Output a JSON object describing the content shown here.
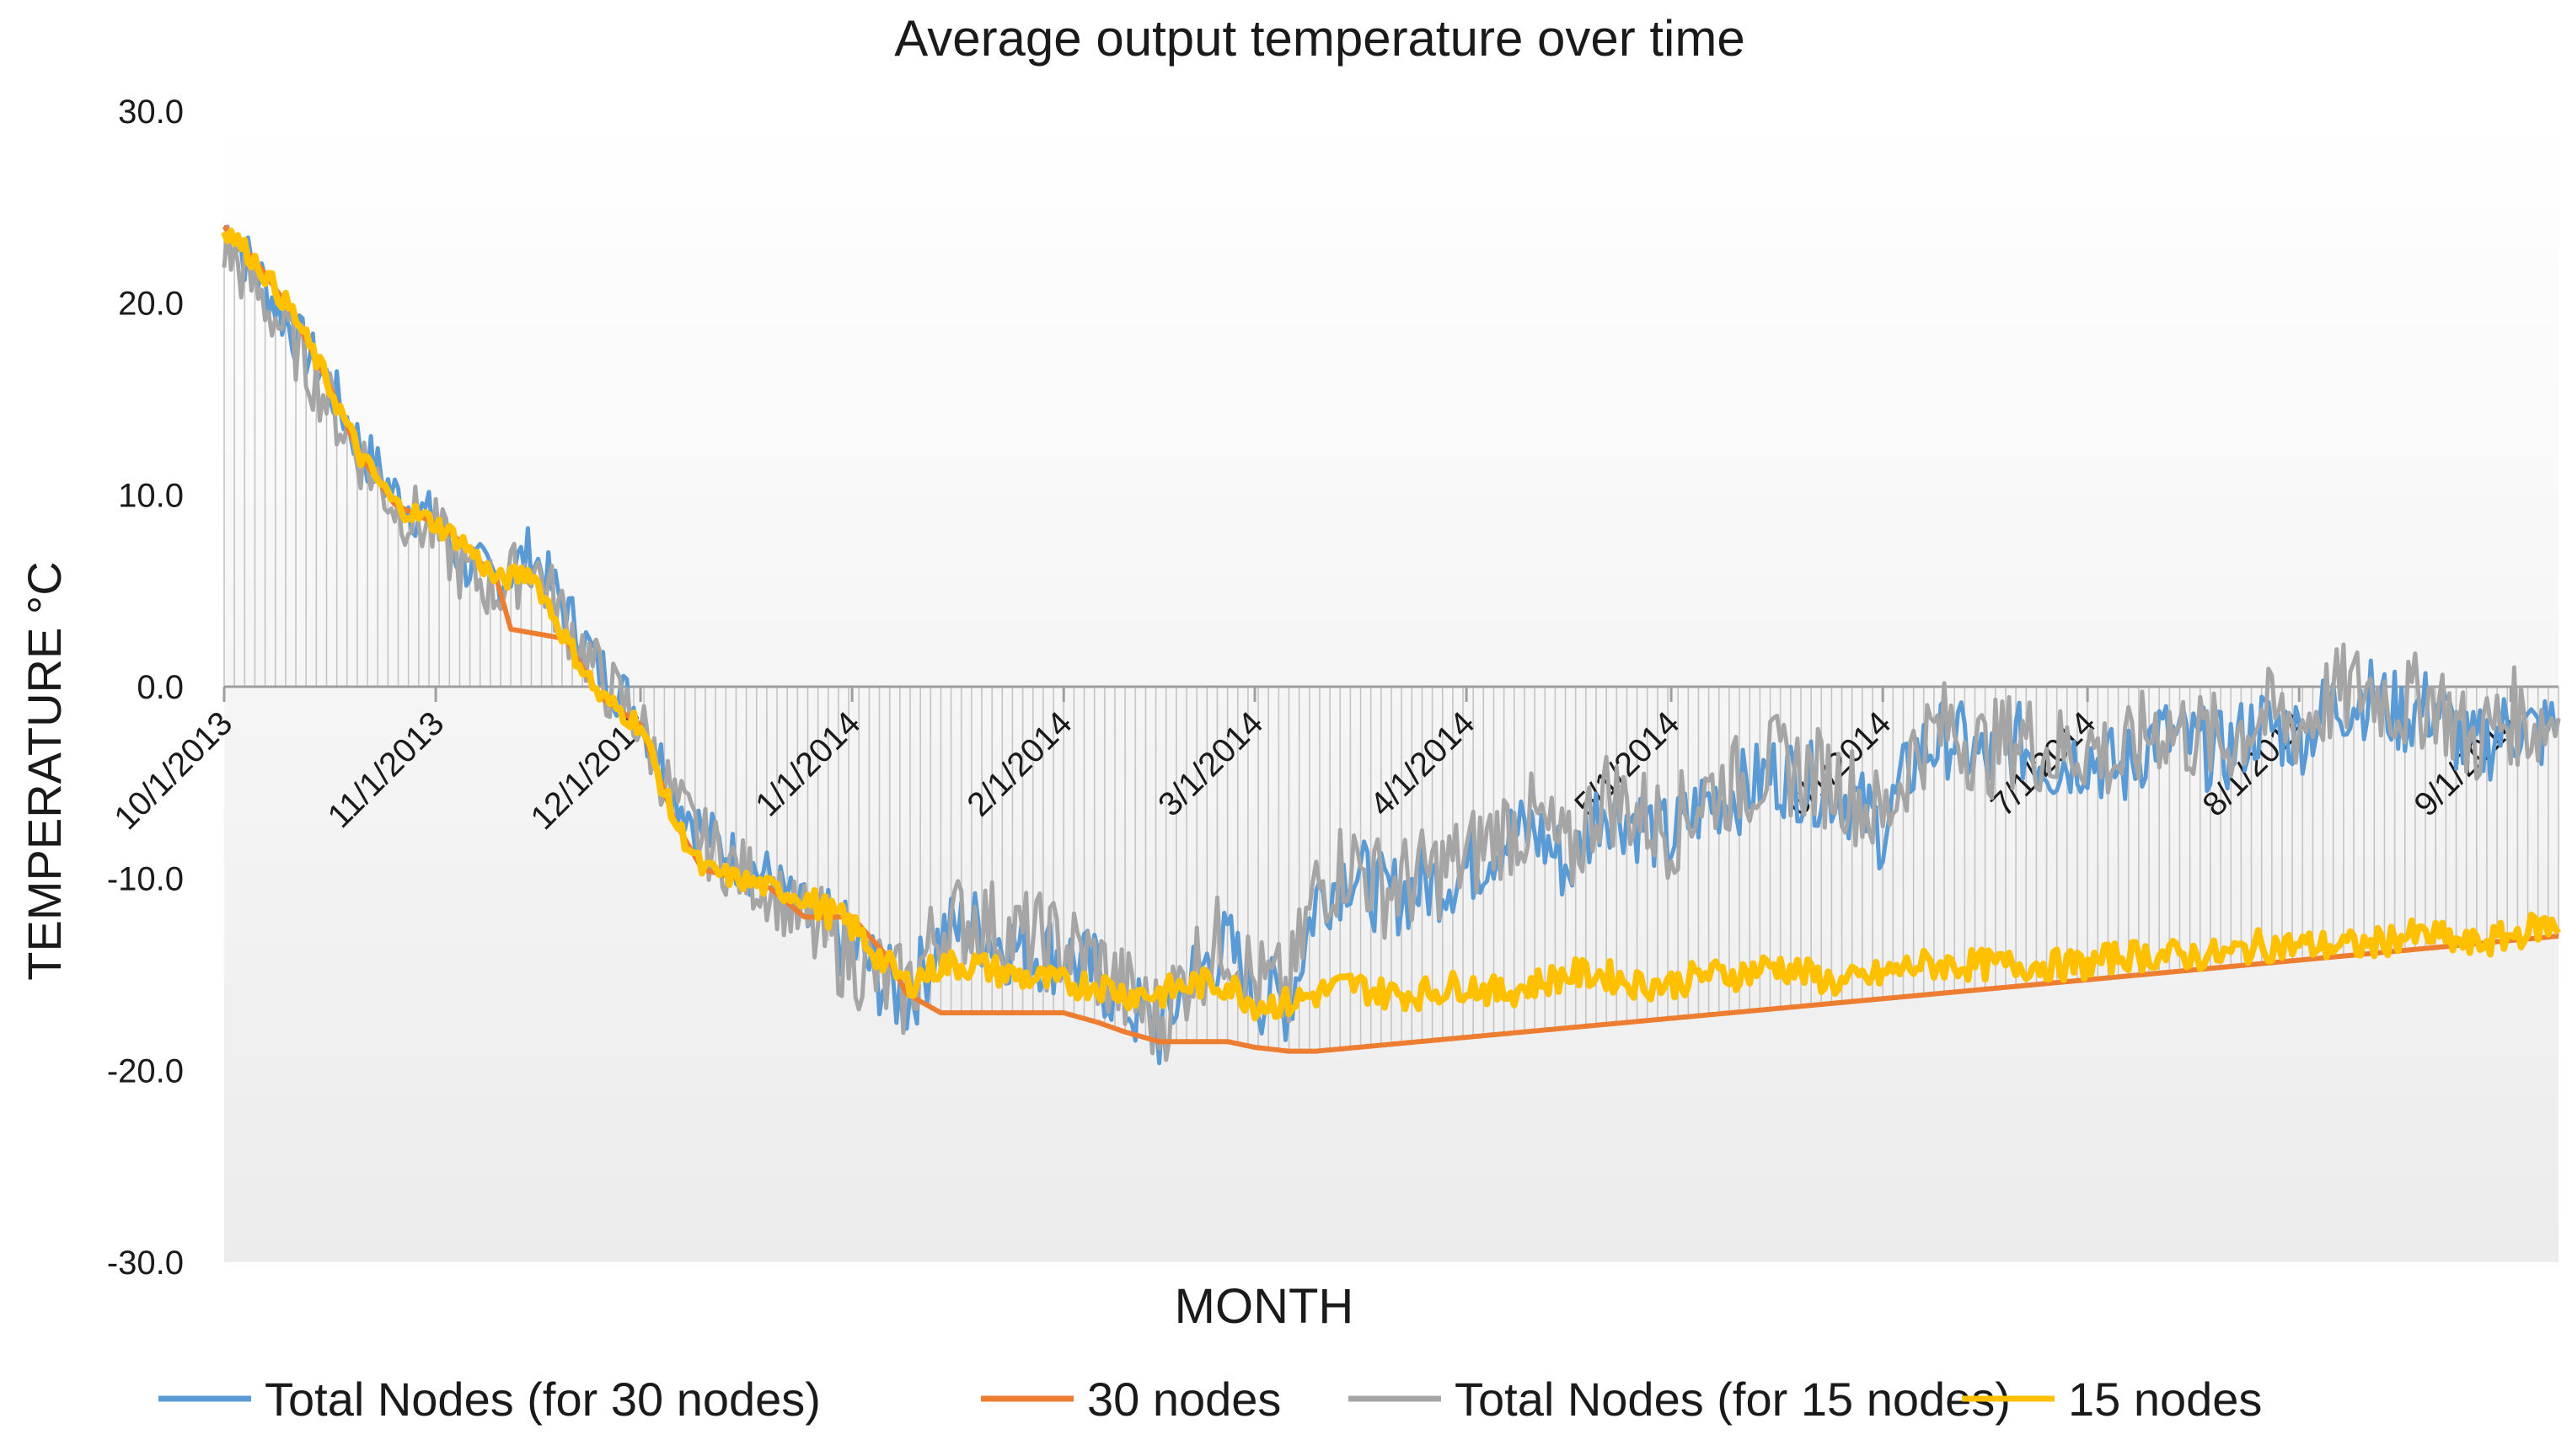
{
  "chart_data": {
    "type": "line",
    "title": "Average output temperature over time",
    "xlabel": "MONTH",
    "ylabel": "TEMPERATURE °C",
    "ylim": [
      -30,
      30
    ],
    "y_ticks": [
      "30.0",
      "20.0",
      "10.0",
      "0.0",
      "-10.0",
      "-20.0",
      "-30.0"
    ],
    "y_tick_values": [
      30,
      20,
      10,
      0,
      -10,
      -20,
      -30
    ],
    "x_range_days": [
      0,
      342
    ],
    "x_ticks": [
      {
        "label": "10/1/2013",
        "day": 0
      },
      {
        "label": "11/1/2013",
        "day": 31
      },
      {
        "label": "12/1/2013",
        "day": 61
      },
      {
        "label": "1/1/2014",
        "day": 92
      },
      {
        "label": "2/1/2014",
        "day": 123
      },
      {
        "label": "3/1/2014",
        "day": 151
      },
      {
        "label": "4/1/2014",
        "day": 182
      },
      {
        "label": "5/1/2014",
        "day": 212
      },
      {
        "label": "6/1/2014",
        "day": 243
      },
      {
        "label": "7/1/2014",
        "day": 273
      },
      {
        "label": "8/1/2014",
        "day": 304
      },
      {
        "label": "9/1/2014",
        "day": 335
      }
    ],
    "legend_position": "bottom",
    "series": [
      {
        "name": "Total Nodes (for 30 nodes)",
        "color": "#5b9bd5",
        "x": [
          0,
          5,
          10,
          15,
          20,
          25,
          31,
          35,
          40,
          45,
          50,
          55,
          61,
          66,
          70,
          75,
          80,
          85,
          92,
          97,
          100,
          105,
          110,
          115,
          123,
          128,
          132,
          137,
          142,
          147,
          151,
          156,
          160,
          165,
          170,
          175,
          182,
          187,
          192,
          197,
          202,
          207,
          212,
          217,
          222,
          227,
          232,
          237,
          243,
          248,
          253,
          258,
          263,
          268,
          273,
          278,
          283,
          288,
          293,
          298,
          304,
          309,
          314,
          319,
          324,
          329,
          335,
          339,
          342
        ],
        "values": [
          24.0,
          21.5,
          18.5,
          16.0,
          12.5,
          10.0,
          8.5,
          6.5,
          5.5,
          7.0,
          4.0,
          1.0,
          -1.5,
          -5.5,
          -7.5,
          -9.0,
          -10.0,
          -12.0,
          -13.5,
          -15.5,
          -16.5,
          -13.0,
          -12.5,
          -13.5,
          -14.0,
          -15.0,
          -16.5,
          -18.0,
          -15.0,
          -13.5,
          -16.0,
          -16.5,
          -11.0,
          -9.5,
          -11.0,
          -10.5,
          -9.5,
          -8.0,
          -7.5,
          -9.5,
          -6.0,
          -7.0,
          -8.0,
          -6.0,
          -5.5,
          -4.5,
          -5.0,
          -5.5,
          -7.5,
          -3.5,
          -2.5,
          -4.0,
          -3.0,
          -4.0,
          -3.5,
          -4.5,
          -2.5,
          -3.0,
          -3.5,
          -2.0,
          -2.5,
          -1.0,
          -0.5,
          -1.5,
          -1.0,
          -3.5,
          -2.0,
          -2.5,
          -2.0
        ]
      },
      {
        "name": "30 nodes",
        "color": "#ed7d31",
        "x": [
          0,
          5,
          10,
          15,
          20,
          25,
          31,
          35,
          40,
          42,
          50,
          55,
          61,
          66,
          70,
          75,
          80,
          85,
          92,
          97,
          100,
          105,
          110,
          115,
          123,
          128,
          132,
          137,
          142,
          147,
          151,
          156,
          160,
          342
        ],
        "values": [
          24.0,
          22.0,
          19.5,
          16.0,
          12.0,
          9.5,
          8.5,
          7.5,
          5.5,
          3.0,
          2.5,
          -0.5,
          -2.0,
          -7.0,
          -9.5,
          -10.0,
          -10.5,
          -12.0,
          -12.0,
          -14.0,
          -16.0,
          -17.0,
          -17.0,
          -17.0,
          -17.0,
          -17.5,
          -18.0,
          -18.5,
          -18.5,
          -18.5,
          -18.8,
          -19.0,
          -19.0,
          -13.0
        ]
      },
      {
        "name": "Total Nodes (for 15 nodes)",
        "color": "#a5a5a5",
        "x": [
          0,
          5,
          10,
          15,
          20,
          25,
          31,
          35,
          40,
          45,
          50,
          55,
          61,
          66,
          70,
          75,
          80,
          85,
          92,
          97,
          100,
          105,
          110,
          115,
          123,
          128,
          132,
          137,
          142,
          147,
          151,
          156,
          160,
          165,
          170,
          175,
          182,
          187,
          192,
          197,
          202,
          207,
          212,
          217,
          222,
          227,
          232,
          237,
          243,
          248,
          253,
          258,
          263,
          268,
          273,
          278,
          283,
          288,
          293,
          298,
          304,
          309,
          314,
          319,
          324,
          329,
          335,
          339,
          342
        ],
        "values": [
          23.0,
          20.5,
          18.0,
          15.0,
          12.0,
          9.5,
          8.0,
          6.0,
          5.0,
          6.5,
          3.5,
          0.5,
          -2.0,
          -6.0,
          -8.0,
          -9.5,
          -10.5,
          -12.5,
          -14.0,
          -15.5,
          -16.0,
          -12.5,
          -12.0,
          -13.0,
          -13.5,
          -14.5,
          -16.0,
          -17.5,
          -14.5,
          -13.0,
          -15.5,
          -16.0,
          -10.5,
          -9.0,
          -10.5,
          -10.0,
          -9.0,
          -7.5,
          -7.0,
          -9.0,
          -5.5,
          -6.5,
          -7.5,
          -5.5,
          -5.0,
          -4.0,
          -4.5,
          -5.0,
          -7.0,
          -3.0,
          -2.0,
          -3.5,
          -2.5,
          -3.5,
          -3.0,
          -4.0,
          -2.0,
          -2.5,
          -3.0,
          -1.5,
          -2.0,
          -0.5,
          0.0,
          -1.0,
          -0.5,
          -3.0,
          -1.5,
          -2.0,
          -1.5
        ]
      },
      {
        "name": "15 nodes",
        "color": "#ffc000",
        "x": [
          0,
          5,
          10,
          15,
          20,
          25,
          31,
          35,
          40,
          45,
          50,
          55,
          61,
          66,
          70,
          75,
          80,
          85,
          92,
          97,
          100,
          105,
          110,
          115,
          123,
          128,
          132,
          137,
          142,
          147,
          151,
          156,
          160,
          165,
          170,
          175,
          182,
          187,
          192,
          197,
          202,
          207,
          212,
          217,
          222,
          227,
          232,
          237,
          243,
          248,
          253,
          258,
          263,
          268,
          273,
          278,
          283,
          288,
          293,
          298,
          304,
          309,
          314,
          319,
          324,
          329,
          335,
          339,
          342
        ],
        "values": [
          24.0,
          22.0,
          19.5,
          16.0,
          12.0,
          9.5,
          8.5,
          7.5,
          5.5,
          6.0,
          2.5,
          -0.5,
          -2.0,
          -7.0,
          -9.5,
          -10.0,
          -10.5,
          -11.0,
          -12.5,
          -14.5,
          -15.5,
          -14.5,
          -14.5,
          -15.0,
          -15.5,
          -15.5,
          -16.0,
          -16.0,
          -15.5,
          -15.5,
          -16.5,
          -16.5,
          -16.0,
          -15.5,
          -16.0,
          -16.0,
          -15.5,
          -16.0,
          -15.5,
          -15.0,
          -15.0,
          -15.5,
          -15.5,
          -15.0,
          -15.0,
          -14.5,
          -15.0,
          -15.5,
          -15.0,
          -14.5,
          -14.5,
          -14.5,
          -14.5,
          -14.5,
          -14.5,
          -14.0,
          -14.0,
          -14.0,
          -14.0,
          -13.5,
          -13.5,
          -13.5,
          -13.5,
          -13.0,
          -13.0,
          -13.5,
          -13.0,
          -12.5,
          -12.5
        ]
      }
    ]
  }
}
